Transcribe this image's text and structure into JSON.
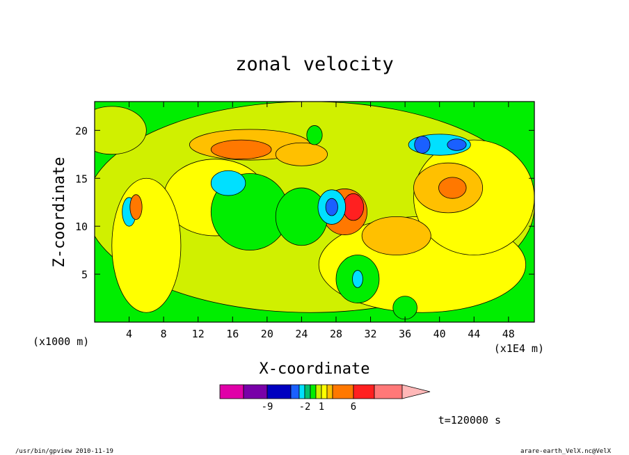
{
  "chart_data": {
    "type": "heatmap",
    "title": "zonal velocity",
    "xlabel": "X-coordinate",
    "ylabel": "Z-coordinate",
    "x_unit_label": "(x1E4 m)",
    "y_unit_label": "(x1000 m)",
    "xlim": [
      0,
      51
    ],
    "ylim": [
      0,
      23
    ],
    "x_ticks": [
      4,
      8,
      12,
      16,
      20,
      24,
      28,
      32,
      36,
      40,
      44,
      48
    ],
    "y_ticks": [
      5,
      10,
      15,
      20
    ],
    "colorbar": {
      "levels": [
        -12,
        -9,
        -6,
        -3,
        -2,
        -1,
        0,
        1,
        2,
        3,
        6,
        9,
        12
      ],
      "colors": [
        "#e000a8",
        "#7800a8",
        "#0000c0",
        "#1a60ff",
        "#00e0ff",
        "#00c070",
        "#00ee00",
        "#d0f000",
        "#ffff00",
        "#ffc000",
        "#ff7800",
        "#ff2020",
        "#ff7878",
        "#ffb8b8"
      ],
      "tick_labels": [
        {
          "value": -9,
          "label": "-9"
        },
        {
          "value": -2,
          "label": "-2"
        },
        {
          "value": 1,
          "label": "1"
        },
        {
          "value": 6,
          "label": "6"
        }
      ]
    },
    "field_regions": [
      {
        "kind": "ellipse",
        "x": 25,
        "z": 12,
        "rx": 26,
        "rz": 11,
        "value": 0.5
      },
      {
        "kind": "ellipse",
        "x": 38,
        "z": 6,
        "rx": 12,
        "rz": 5,
        "value": 1.5
      },
      {
        "kind": "ellipse",
        "x": 14,
        "z": 13,
        "rx": 6,
        "rz": 4,
        "value": 1.5
      },
      {
        "kind": "ellipse",
        "x": 44,
        "z": 13,
        "rx": 7,
        "rz": 6,
        "value": 1.5
      },
      {
        "kind": "ellipse",
        "x": 41,
        "z": 14,
        "rx": 4,
        "rz": 2.6,
        "value": 2.5
      },
      {
        "kind": "ellipse",
        "x": 41.5,
        "z": 14,
        "rx": 1.6,
        "rz": 1.1,
        "value": 4
      },
      {
        "kind": "ellipse",
        "x": 35,
        "z": 9,
        "rx": 4,
        "rz": 2,
        "value": 2.5
      },
      {
        "kind": "ellipse",
        "x": 6,
        "z": 8,
        "rx": 4,
        "rz": 7,
        "value": 1.5
      },
      {
        "kind": "ellipse",
        "x": 18,
        "z": 18.5,
        "rx": 7,
        "rz": 1.6,
        "value": 2.5
      },
      {
        "kind": "ellipse",
        "x": 17,
        "z": 18,
        "rx": 3.5,
        "rz": 1.0,
        "value": 4
      },
      {
        "kind": "ellipse",
        "x": 24,
        "z": 17.5,
        "rx": 3,
        "rz": 1.2,
        "value": 2.5
      },
      {
        "kind": "ellipse",
        "x": 29,
        "z": 11.5,
        "rx": 2.6,
        "rz": 2.4,
        "value": 4
      },
      {
        "kind": "ellipse",
        "x": 30,
        "z": 12,
        "rx": 1.2,
        "rz": 1.4,
        "value": 7
      },
      {
        "kind": "ellipse",
        "x": 18,
        "z": 11.5,
        "rx": 4.5,
        "rz": 4,
        "value": -0.5
      },
      {
        "kind": "ellipse",
        "x": 24,
        "z": 11,
        "rx": 3,
        "rz": 3,
        "value": -0.5
      },
      {
        "kind": "ellipse",
        "x": 15.5,
        "z": 14.5,
        "rx": 2.0,
        "rz": 1.3,
        "value": -2.5
      },
      {
        "kind": "ellipse",
        "x": 27.5,
        "z": 12,
        "rx": 1.6,
        "rz": 1.8,
        "value": -2.5
      },
      {
        "kind": "ellipse",
        "x": 27.5,
        "z": 12,
        "rx": 0.7,
        "rz": 0.9,
        "value": -4
      },
      {
        "kind": "ellipse",
        "x": 30.5,
        "z": 4.5,
        "rx": 2.5,
        "rz": 2.5,
        "value": -0.5
      },
      {
        "kind": "ellipse",
        "x": 30.5,
        "z": 4.5,
        "rx": 0.6,
        "rz": 0.9,
        "value": -2.5
      },
      {
        "kind": "ellipse",
        "x": 40,
        "z": 18.5,
        "rx": 3.6,
        "rz": 1.1,
        "value": -2.5
      },
      {
        "kind": "ellipse",
        "x": 42,
        "z": 18.5,
        "rx": 1.1,
        "rz": 0.6,
        "value": -4
      },
      {
        "kind": "ellipse",
        "x": 38,
        "z": 18.5,
        "rx": 0.9,
        "rz": 0.9,
        "value": -4
      },
      {
        "kind": "ellipse",
        "x": 4,
        "z": 11.5,
        "rx": 0.8,
        "rz": 1.5,
        "value": -2.5
      },
      {
        "kind": "ellipse",
        "x": 4.8,
        "z": 12,
        "rx": 0.7,
        "rz": 1.3,
        "value": 4
      },
      {
        "kind": "ellipse",
        "x": 36,
        "z": 1.5,
        "rx": 1.4,
        "rz": 1.2,
        "value": -0.5
      },
      {
        "kind": "ellipse",
        "x": 25.5,
        "z": 19.5,
        "rx": 0.9,
        "rz": 1.0,
        "value": -0.5
      },
      {
        "kind": "ellipse",
        "x": 2,
        "z": 20,
        "rx": 4,
        "rz": 2.5,
        "value": 0.5
      }
    ],
    "annotation": "t=120000 s"
  },
  "footer": {
    "left": "/usr/bin/gpview  2010-11-19",
    "right": "arare-earth_VelX.nc@VelX"
  }
}
